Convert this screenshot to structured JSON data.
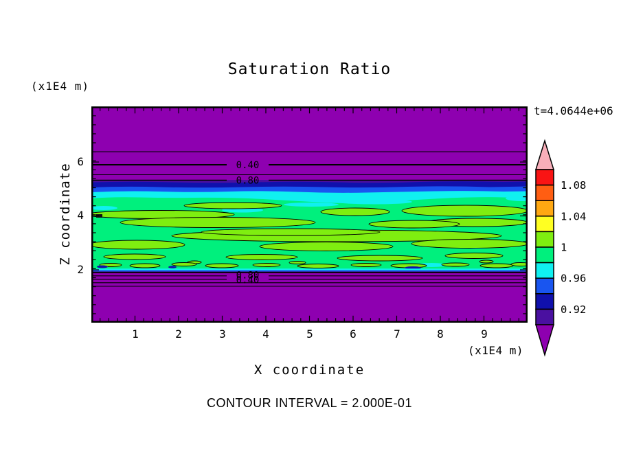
{
  "palette": {
    "purple": "#8E00B0",
    "indigo": "#4A10A0",
    "navy": "#1010AC",
    "blue": "#1955F0",
    "cyan": "#10F0F0",
    "springgreen": "#00F07D",
    "chartreuse": "#7FEE10",
    "yellow": "#FFFF22",
    "orange": "#FFA812",
    "orangered": "#FF5E12",
    "red": "#F91414",
    "pink": "#F8AEB9",
    "line": "#000000"
  },
  "chart_data": {
    "type": "heatmap",
    "title": "Saturation Ratio",
    "timestamp": "t=4.0644e+06",
    "xlabel": "X coordinate",
    "ylabel": "Z coordinate",
    "x_unit": "(x1E4 m)",
    "y_unit": "(x1E4 m)",
    "footer_note": "CONTOUR INTERVAL = 2.000E-01",
    "contour_interval": 0.2,
    "xlim": [
      0,
      10
    ],
    "ylim": [
      0,
      8
    ],
    "x_ticks": [
      "1",
      "2",
      "3",
      "4",
      "5",
      "6",
      "7",
      "8",
      "9"
    ],
    "y_ticks": [
      "6",
      "4",
      "2"
    ],
    "upper_contour_labels": [
      "0.40",
      "0.80"
    ],
    "lower_contour_labels": [
      "0.80",
      "0.40"
    ],
    "colorbar": {
      "tick_labels": [
        "1.08",
        "1.04",
        "1",
        "0.96",
        "0.92"
      ],
      "levels_top_to_bottom": [
        1.1,
        1.08,
        1.06,
        1.04,
        1.02,
        1.0,
        0.98,
        0.96,
        0.94,
        0.92,
        0.9
      ],
      "segments_top_to_bottom": [
        {
          "color": "red",
          "range": [
            1.08,
            1.1
          ]
        },
        {
          "color": "orangered",
          "range": [
            1.06,
            1.08
          ]
        },
        {
          "color": "orange",
          "range": [
            1.04,
            1.06
          ]
        },
        {
          "color": "yellow",
          "range": [
            1.02,
            1.04
          ]
        },
        {
          "color": "chartreuse",
          "range": [
            1.0,
            1.02
          ]
        },
        {
          "color": "springgreen",
          "range": [
            0.98,
            1.0
          ]
        },
        {
          "color": "cyan",
          "range": [
            0.96,
            0.98
          ]
        },
        {
          "color": "blue",
          "range": [
            0.94,
            0.96
          ]
        },
        {
          "color": "navy",
          "range": [
            0.92,
            0.94
          ]
        },
        {
          "color": "indigo",
          "range": [
            0.9,
            0.92
          ]
        }
      ],
      "over_range": {
        "color": "pink",
        "value": "> 1.10"
      },
      "under_range": {
        "color": "purple",
        "value": "< 0.90"
      }
    },
    "field_layers_top_to_bottom": [
      {
        "z_range_x1E4m": [
          5.7,
          8.0
        ],
        "saturation_ratio": "< 0.9 (under-range)",
        "color": "purple",
        "contour_lines": [
          "0.20",
          "0.40",
          "0.60",
          "0.80"
        ]
      },
      {
        "z_range_x1E4m": [
          5.45,
          5.7
        ],
        "saturation_ratio": "0.90-0.94",
        "color": "indigo/navy"
      },
      {
        "z_range_x1E4m": [
          5.25,
          5.45
        ],
        "saturation_ratio": "0.94-0.98",
        "color": "blue/cyan"
      },
      {
        "z_range_x1E4m": [
          2.0,
          5.25
        ],
        "saturation_ratio": "0.98-1.02",
        "color": "springgreen with chartreuse lenses and cyan streaks"
      },
      {
        "z_range_x1E4m": [
          1.85,
          2.0
        ],
        "saturation_ratio": "0.94-0.98 (thin)",
        "color": "cyan/blue",
        "contour_lines": [
          "0.80",
          "0.60",
          "0.40",
          "0.20"
        ]
      },
      {
        "z_range_x1E4m": [
          0.0,
          1.85
        ],
        "saturation_ratio": "< 0.9 (under-range)",
        "color": "purple"
      }
    ]
  }
}
